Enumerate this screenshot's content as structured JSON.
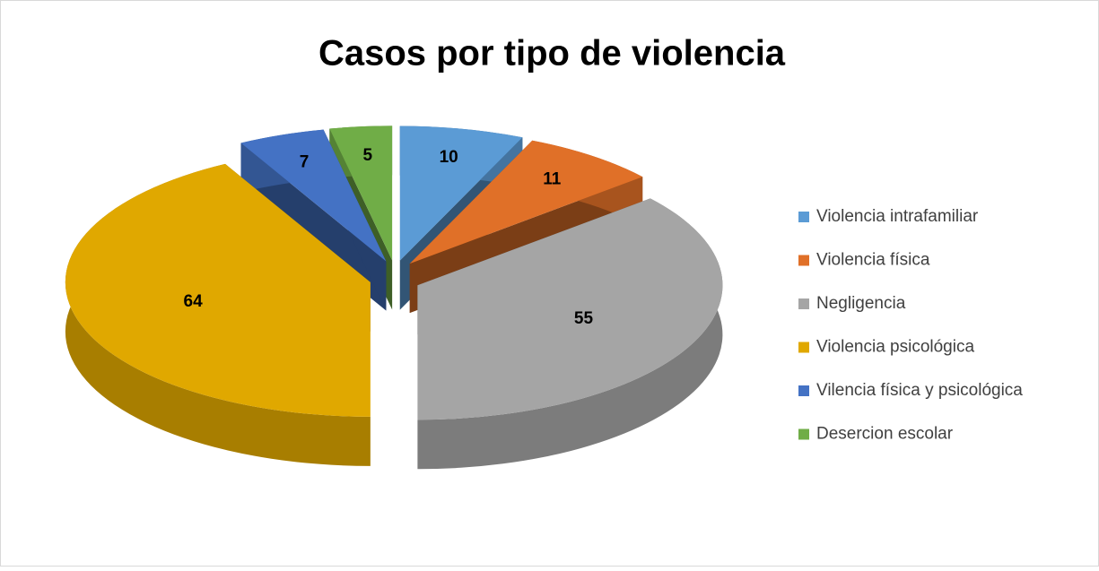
{
  "chart_data": {
    "type": "pie",
    "title": "Casos por tipo de violencia",
    "categories": [
      "Violencia intrafamiliar",
      "Violencia física",
      "Negligencia",
      "Violencia psicológica",
      "Vilencia física y psicológica",
      "Desercion escolar"
    ],
    "values": [
      10,
      11,
      55,
      64,
      7,
      5
    ],
    "colors": [
      "#5b9bd5",
      "#e07028",
      "#a5a5a5",
      "#e0a800",
      "#4472c4",
      "#70ad47"
    ],
    "legend": "right"
  }
}
